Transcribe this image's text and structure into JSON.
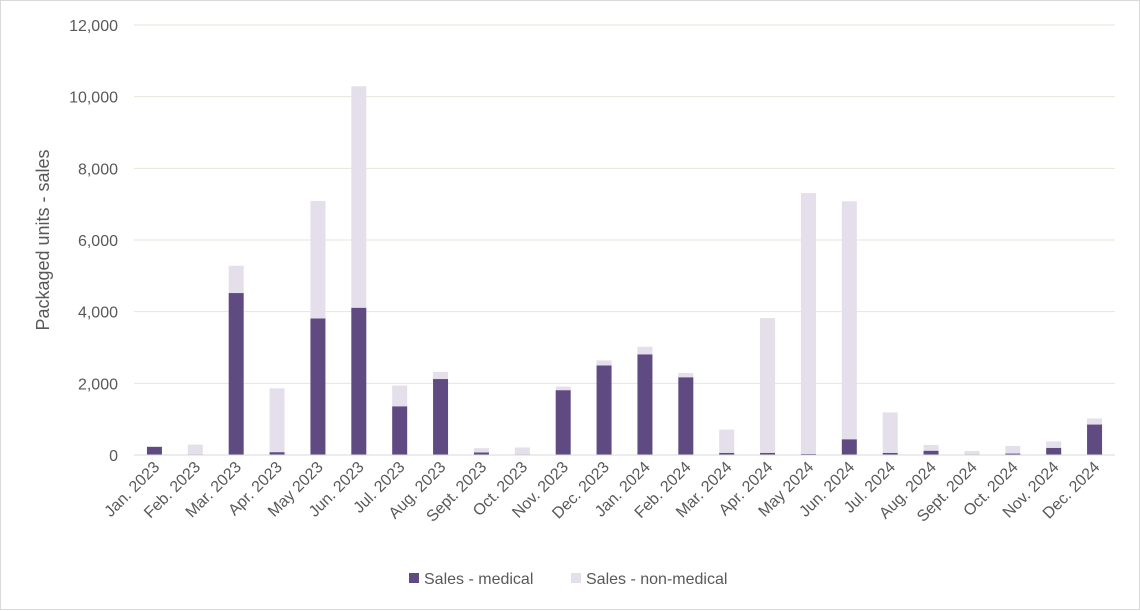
{
  "chart_data": {
    "type": "bar",
    "stacked": true,
    "title": "",
    "xlabel": "",
    "ylabel": "Packaged units - sales",
    "ylim": [
      0,
      12000
    ],
    "yticks": [
      0,
      2000,
      4000,
      6000,
      8000,
      10000,
      12000
    ],
    "ytick_labels": [
      "0",
      "2,000",
      "4,000",
      "6,000",
      "8,000",
      "10,000",
      "12,000"
    ],
    "grid": true,
    "legend_position": "bottom",
    "categories": [
      "Jan. 2023",
      "Feb. 2023",
      "Mar. 2023",
      "Apr. 2023",
      "May 2023",
      "Jun. 2023",
      "Jul. 2023",
      "Aug. 2023",
      "Sept. 2023",
      "Oct. 2023",
      "Nov. 2023",
      "Dec. 2023",
      "Jan. 2024",
      "Feb. 2024",
      "Mar. 2024",
      "Apr. 2024",
      "May 2024",
      "Jun. 2024",
      "Jul. 2024",
      "Aug. 2024",
      "Sept. 2024",
      "Oct. 2024",
      "Nov. 2024",
      "Dec. 2024"
    ],
    "series": [
      {
        "name": "Sales - medical",
        "color": "#5f4b82",
        "values": [
          230,
          20,
          4520,
          80,
          3810,
          4110,
          1360,
          2120,
          70,
          20,
          1810,
          2500,
          2810,
          2170,
          60,
          60,
          30,
          440,
          60,
          120,
          20,
          40,
          200,
          850
        ]
      },
      {
        "name": "Sales - non-medical",
        "color": "#e4dfea",
        "values": [
          10,
          270,
          760,
          1780,
          3280,
          6180,
          580,
          200,
          120,
          190,
          100,
          140,
          210,
          120,
          650,
          3760,
          7280,
          6640,
          1130,
          160,
          90,
          210,
          180,
          170
        ]
      }
    ]
  }
}
